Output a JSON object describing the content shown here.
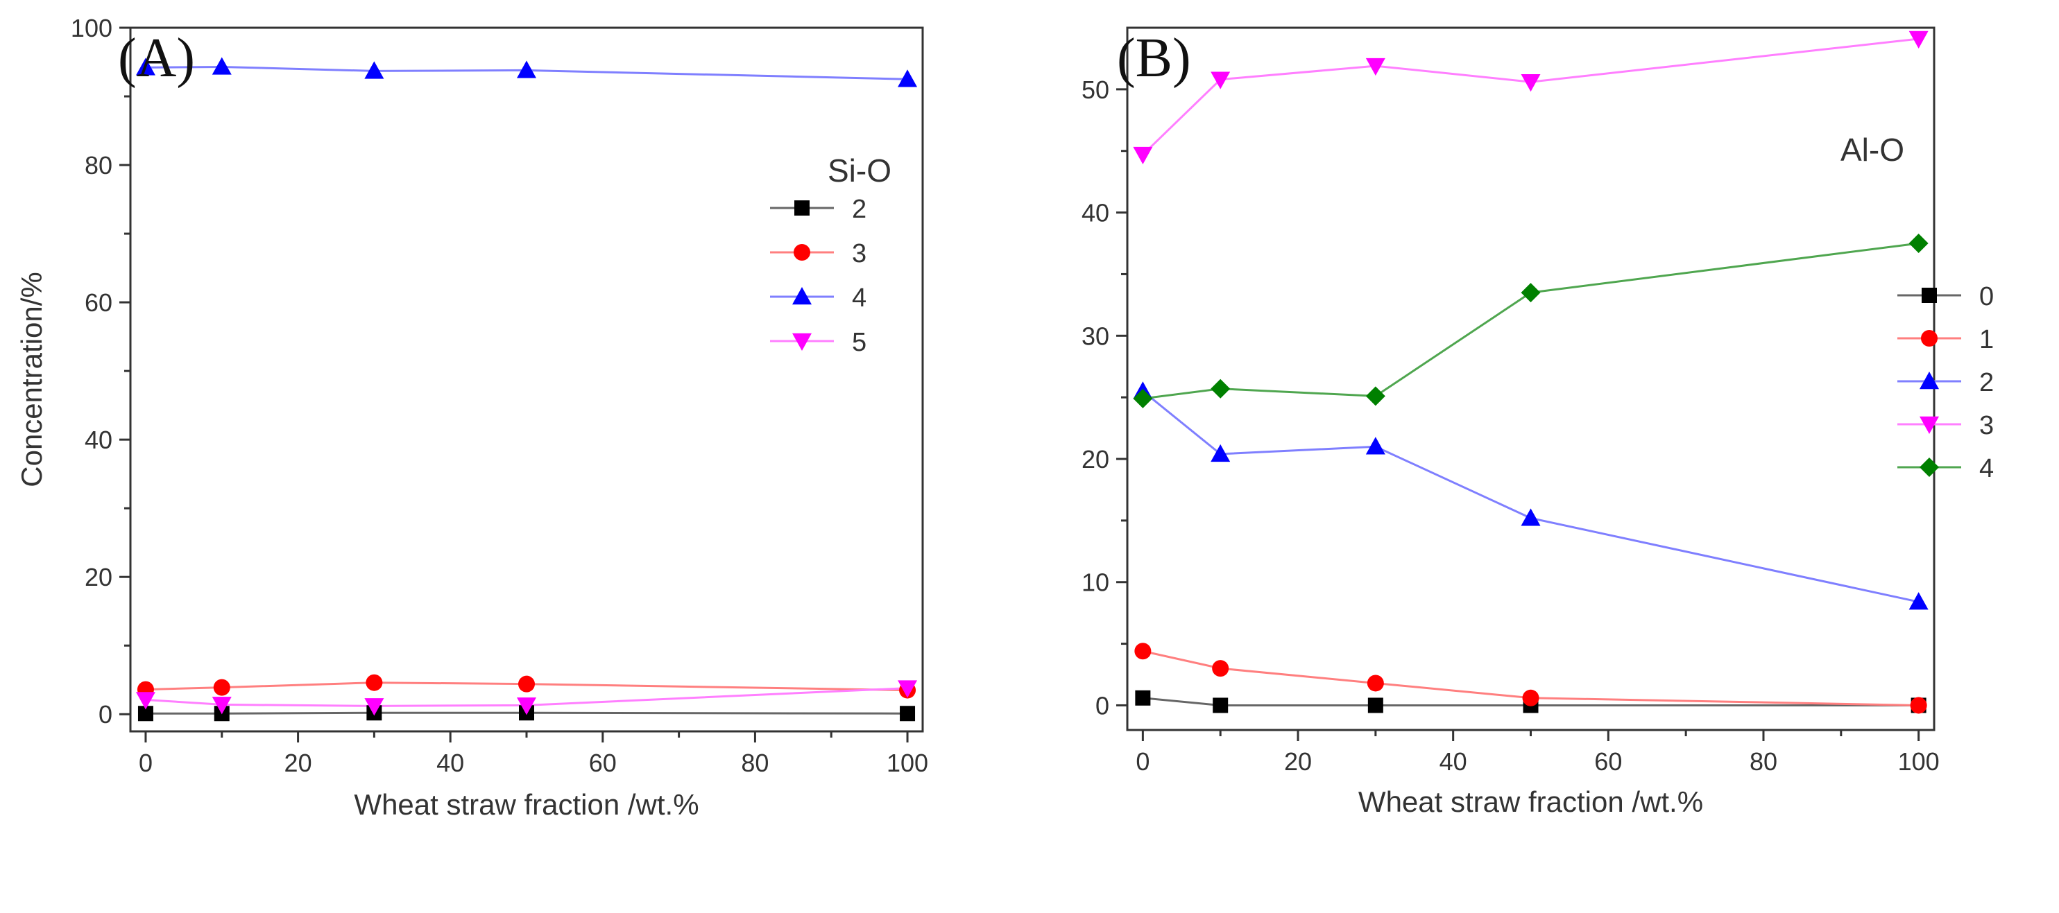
{
  "chart_data": [
    {
      "type": "line",
      "panel_label": "(A)",
      "annotation": "Si-O",
      "xlabel": "Wheat straw fraction /wt.%",
      "ylabel": "Concentration/%",
      "xlim": [
        -2,
        102
      ],
      "ylim": [
        -2.5,
        100
      ],
      "xticks": [
        0,
        20,
        40,
        60,
        80,
        100
      ],
      "yticks": [
        0,
        20,
        40,
        60,
        80,
        100
      ],
      "xtick_labels": [
        "0",
        "20",
        "40",
        "60",
        "80",
        "100"
      ],
      "ytick_labels": [
        "0",
        "20",
        "40",
        "60",
        "80",
        "100"
      ],
      "x": [
        0,
        10,
        30,
        50,
        100
      ],
      "legend_position": "upper-right",
      "series": [
        {
          "name": "2",
          "marker": "square",
          "color": "#000000",
          "line_color": "#666666",
          "values": [
            0.1,
            0.1,
            0.2,
            0.2,
            0.1
          ]
        },
        {
          "name": "3",
          "marker": "circle",
          "color": "#ff0000",
          "line_color": "#ff7f7f",
          "values": [
            3.6,
            3.9,
            4.6,
            4.4,
            3.5
          ]
        },
        {
          "name": "4",
          "marker": "triangle-up",
          "color": "#0000ff",
          "line_color": "#7f7fff",
          "values": [
            94.2,
            94.3,
            93.7,
            93.8,
            92.5
          ]
        },
        {
          "name": "5",
          "marker": "triangle-down",
          "color": "#ff00ff",
          "line_color": "#ff7fff",
          "values": [
            2.1,
            1.4,
            1.2,
            1.3,
            3.8
          ]
        }
      ]
    },
    {
      "type": "line",
      "panel_label": "(B)",
      "annotation": "Al-O",
      "xlabel": "Wheat straw fraction /wt.%",
      "ylabel": "",
      "xlim": [
        -2,
        102
      ],
      "ylim": [
        -2,
        55
      ],
      "xticks": [
        0,
        20,
        40,
        60,
        80,
        100
      ],
      "yticks": [
        0,
        10,
        20,
        30,
        40,
        50
      ],
      "xtick_labels": [
        "0",
        "20",
        "40",
        "60",
        "80",
        "100"
      ],
      "ytick_labels": [
        "0",
        "10",
        "20",
        "30",
        "40",
        "50"
      ],
      "x": [
        0,
        10,
        30,
        50,
        100
      ],
      "legend_position": "right",
      "series": [
        {
          "name": "0",
          "marker": "square",
          "color": "#000000",
          "line_color": "#666666",
          "values": [
            0.6,
            0.0,
            0.0,
            0.0,
            0.0
          ]
        },
        {
          "name": "1",
          "marker": "circle",
          "color": "#ff0000",
          "line_color": "#ff7f7f",
          "values": [
            4.4,
            3.0,
            1.8,
            0.6,
            0.0
          ]
        },
        {
          "name": "2",
          "marker": "triangle-up",
          "color": "#0000ff",
          "line_color": "#7f7fff",
          "values": [
            25.5,
            20.4,
            21.0,
            15.2,
            8.4
          ]
        },
        {
          "name": "3",
          "marker": "triangle-down",
          "color": "#ff00ff",
          "line_color": "#ff7fff",
          "values": [
            44.7,
            50.8,
            51.9,
            50.6,
            54.1
          ]
        },
        {
          "name": "4",
          "marker": "diamond",
          "color": "#008000",
          "line_color": "#4fa64f",
          "values": [
            24.9,
            25.7,
            25.1,
            33.5,
            37.5
          ]
        }
      ]
    }
  ]
}
